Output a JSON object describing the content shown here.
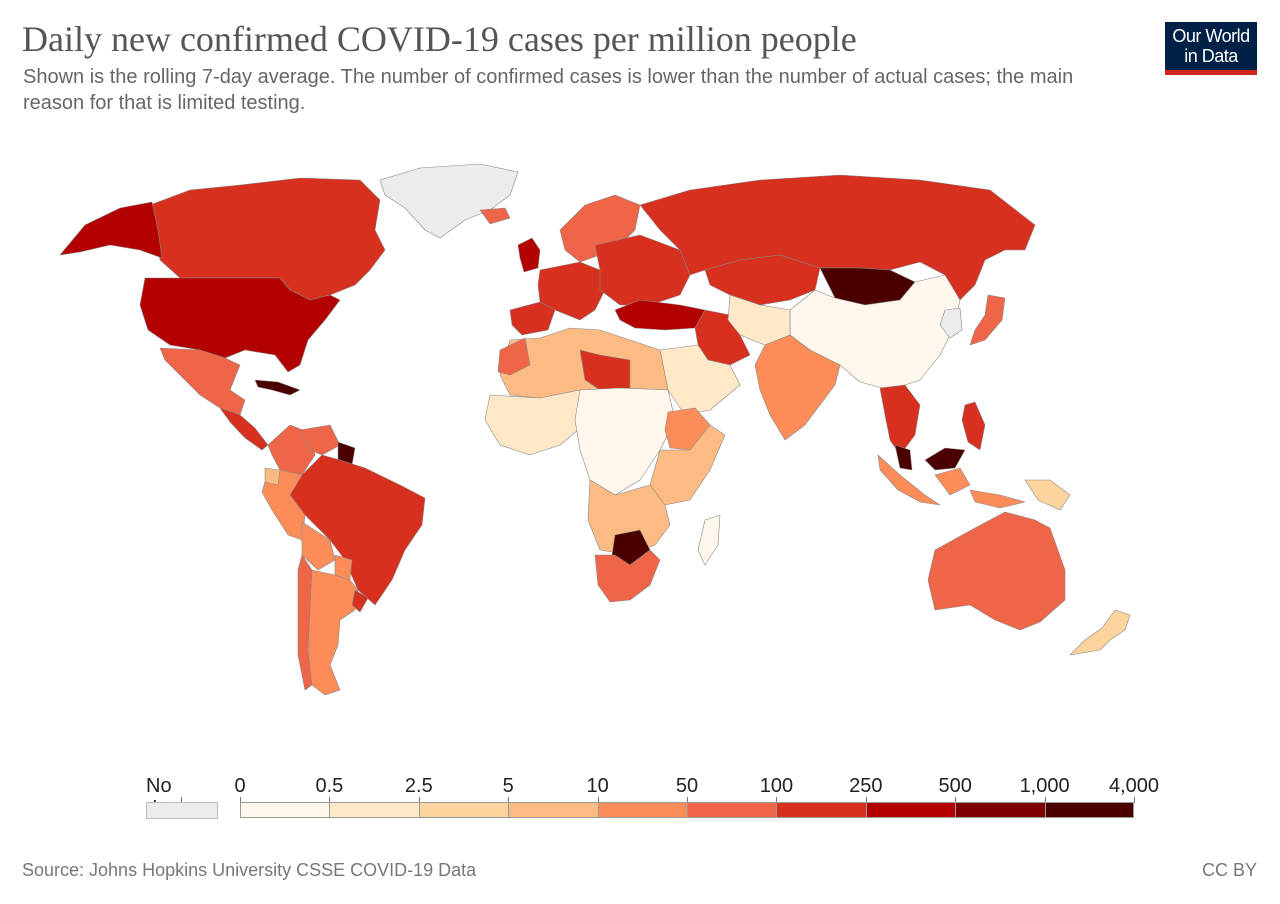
{
  "header": {
    "title": "Daily new confirmed COVID-19 cases per million people",
    "subtitle": "Shown is the rolling 7-day average. The number of confirmed cases is lower than the number of actual cases; the main reason for that is limited testing."
  },
  "logo": {
    "line1": "Our World",
    "line2": "in Data"
  },
  "legend": {
    "no_data_label": "No data",
    "no_data_color": "#ececec",
    "ticks": [
      "0",
      "0.5",
      "2.5",
      "5",
      "10",
      "50",
      "100",
      "250",
      "500",
      "1,000",
      "4,000"
    ],
    "colors": [
      "#fff7ec",
      "#fee8c8",
      "#fdd49e",
      "#fdbb84",
      "#fc8d59",
      "#ef6548",
      "#d7301f",
      "#b30000",
      "#7f0000",
      "#4a0000",
      "#0c1a14"
    ]
  },
  "map": {
    "ocean": "#ffffff",
    "border": "#888888",
    "regions": [
      {
        "name": "Greenland",
        "color": "#ececec"
      },
      {
        "name": "Canada",
        "color": "#d7301f"
      },
      {
        "name": "Alaska",
        "color": "#b30000"
      },
      {
        "name": "United States",
        "color": "#b30000"
      },
      {
        "name": "Mexico",
        "color": "#ef6548"
      },
      {
        "name": "Central America",
        "color": "#d7301f"
      },
      {
        "name": "Cuba",
        "color": "#4a0000"
      },
      {
        "name": "Colombia",
        "color": "#ef6548"
      },
      {
        "name": "Venezuela",
        "color": "#ef6548"
      },
      {
        "name": "Guyana",
        "color": "#4a0000"
      },
      {
        "name": "Brazil",
        "color": "#d7301f"
      },
      {
        "name": "Peru",
        "color": "#fc8d59"
      },
      {
        "name": "Ecuador",
        "color": "#fdbb84"
      },
      {
        "name": "Bolivia",
        "color": "#fc8d59"
      },
      {
        "name": "Chile",
        "color": "#ef6548"
      },
      {
        "name": "Argentina",
        "color": "#fc8d59"
      },
      {
        "name": "Paraguay",
        "color": "#fc8d59"
      },
      {
        "name": "Uruguay",
        "color": "#d7301f"
      },
      {
        "name": "Iceland",
        "color": "#ef6548"
      },
      {
        "name": "United Kingdom",
        "color": "#b30000"
      },
      {
        "name": "Western Europe",
        "color": "#d7301f"
      },
      {
        "name": "Iberia",
        "color": "#d7301f"
      },
      {
        "name": "Scandinavia",
        "color": "#ef6548"
      },
      {
        "name": "Eastern Europe",
        "color": "#d7301f"
      },
      {
        "name": "Russia",
        "color": "#d7301f"
      },
      {
        "name": "Turkey",
        "color": "#b30000"
      },
      {
        "name": "Kazakhstan",
        "color": "#d7301f"
      },
      {
        "name": "Mongolia",
        "color": "#4a0000"
      },
      {
        "name": "China",
        "color": "#fff7ec"
      },
      {
        "name": "Korea",
        "color": "#ececec"
      },
      {
        "name": "Japan",
        "color": "#ef6548"
      },
      {
        "name": "Iran",
        "color": "#d7301f"
      },
      {
        "name": "Central Asia",
        "color": "#fee8c8"
      },
      {
        "name": "Arabian Peninsula",
        "color": "#fee8c8"
      },
      {
        "name": "India",
        "color": "#fc8d59"
      },
      {
        "name": "Mainland Southeast Asia",
        "color": "#d7301f"
      },
      {
        "name": "Malaysia",
        "color": "#4a0000"
      },
      {
        "name": "Indonesia",
        "color": "#fc8d59"
      },
      {
        "name": "Philippines",
        "color": "#d7301f"
      },
      {
        "name": "Papua New Guinea",
        "color": "#fdd49e"
      },
      {
        "name": "Australia",
        "color": "#ef6548"
      },
      {
        "name": "New Zealand",
        "color": "#fdd49e"
      },
      {
        "name": "North Africa",
        "color": "#fdbb84"
      },
      {
        "name": "Morocco",
        "color": "#ef6548"
      },
      {
        "name": "Libya",
        "color": "#d7301f"
      },
      {
        "name": "West Africa",
        "color": "#fee8c8"
      },
      {
        "name": "Central Africa",
        "color": "#fff7ec"
      },
      {
        "name": "Ethiopia",
        "color": "#fc8d59"
      },
      {
        "name": "East Africa",
        "color": "#fdbb84"
      },
      {
        "name": "Southern Africa",
        "color": "#fdbb84"
      },
      {
        "name": "Botswana",
        "color": "#4a0000"
      },
      {
        "name": "South Africa",
        "color": "#ef6548"
      },
      {
        "name": "Madagascar",
        "color": "#fff7ec"
      }
    ]
  },
  "footer": {
    "source": "Source: Johns Hopkins University CSSE COVID-19 Data",
    "license": "CC BY"
  }
}
